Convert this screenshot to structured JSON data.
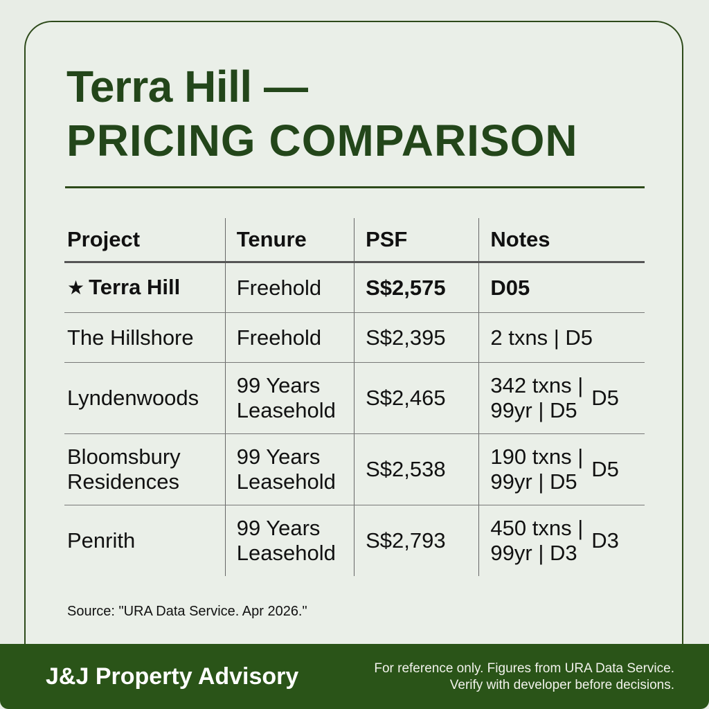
{
  "header": {
    "title_line1": "Terra Hill —",
    "title_line2": "PRICING COMPARISON"
  },
  "table": {
    "columns": [
      "Project",
      "Tenure",
      "PSF",
      "Notes"
    ],
    "rows": [
      {
        "star": "★",
        "project": "Terra Hill",
        "tenure_l1": "Freehold",
        "tenure_l2": "",
        "psf": "S$2,575",
        "notes_l1": "D05",
        "notes_l2": "",
        "notes_side": "",
        "highlight": true
      },
      {
        "star": "",
        "project": "The Hillshore",
        "tenure_l1": "Freehold",
        "tenure_l2": "",
        "psf": "S$2,395",
        "notes_l1": "2 txns | D5",
        "notes_l2": "",
        "notes_side": ""
      },
      {
        "star": "",
        "project": "Lyndenwoods",
        "tenure_l1": "99 Years",
        "tenure_l2": "Leasehold",
        "psf": "S$2,465",
        "notes_l1": "342 txns |",
        "notes_l2": "99yr | D5",
        "notes_side": "D5"
      },
      {
        "star": "",
        "project_l1": "Bloomsbury",
        "project_l2": "Residences",
        "tenure_l1": "99 Years",
        "tenure_l2": "Leasehold",
        "psf": "S$2,538",
        "notes_l1": "190 txns |",
        "notes_l2": "99yr | D5",
        "notes_side": "D5"
      },
      {
        "star": "",
        "project": "Penrith",
        "tenure_l1": "99 Years",
        "tenure_l2": "Leasehold",
        "psf": "S$2,793",
        "notes_l1": "450 txns |",
        "notes_l2": "99yr | D3",
        "notes_side": "D3"
      }
    ]
  },
  "source": "Source: \"URA Data Service. Apr 2026.\"",
  "footer": {
    "brand": "J&J Property Advisory",
    "disclaimer_l1": "For reference only. Figures from URA Data Service.",
    "disclaimer_l2": "Verify with developer before decisions."
  },
  "colors": {
    "accent_green": "#23461a",
    "footer_green": "#2a5418",
    "background": "#e8ede6"
  }
}
